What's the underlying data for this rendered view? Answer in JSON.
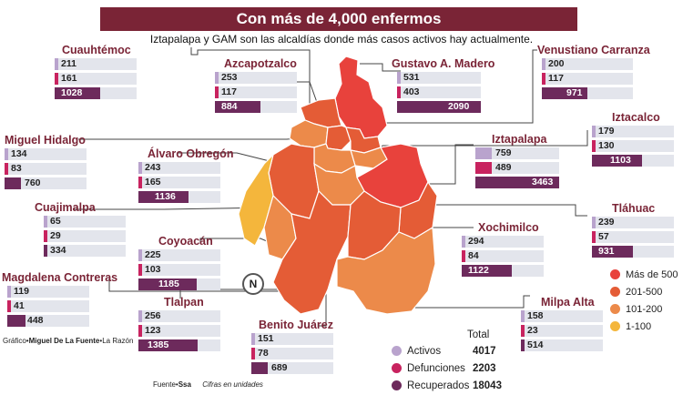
{
  "title": "Con más de 4,000 enfermos",
  "subtitle": "Iztapalapa y GAM son las alcaldías donde más casos activos hay actualmente.",
  "colors": {
    "banner": "#7a2436",
    "activos": "#b9a3cd",
    "defunciones": "#c8235f",
    "recuperados": "#6d2a5c",
    "mas500": "#e8423c",
    "r201_500": "#e45c36",
    "r101_200": "#ec8a4a",
    "r1_100": "#f4b63c"
  },
  "alcaldias": [
    {
      "name": "Cuauhtémoc",
      "activos": "211",
      "defunciones": "161",
      "recuperados": "1028"
    },
    {
      "name": "Azcapotzalco",
      "activos": "253",
      "defunciones": "117",
      "recuperados": "884"
    },
    {
      "name": "Gustavo A. Madero",
      "activos": "531",
      "defunciones": "403",
      "recuperados": "2090"
    },
    {
      "name": "Venustiano Carranza",
      "activos": "200",
      "defunciones": "117",
      "recuperados": "971"
    },
    {
      "name": "Miguel Hidalgo",
      "activos": "134",
      "defunciones": "83",
      "recuperados": "760"
    },
    {
      "name": "Álvaro Obregón",
      "activos": "243",
      "defunciones": "165",
      "recuperados": "1136"
    },
    {
      "name": "Iztacalco",
      "activos": "179",
      "defunciones": "130",
      "recuperados": "1103"
    },
    {
      "name": "Iztapalapa",
      "activos": "759",
      "defunciones": "489",
      "recuperados": "3463"
    },
    {
      "name": "Cuajimalpa",
      "activos": "65",
      "defunciones": "29",
      "recuperados": "334"
    },
    {
      "name": "Tláhuac",
      "activos": "239",
      "defunciones": "57",
      "recuperados": "931"
    },
    {
      "name": "Xochimilco",
      "activos": "294",
      "defunciones": "84",
      "recuperados": "1122"
    },
    {
      "name": "Coyoacán",
      "activos": "225",
      "defunciones": "103",
      "recuperados": "1185"
    },
    {
      "name": "Magdalena Contreras",
      "activos": "119",
      "defunciones": "41",
      "recuperados": "448"
    },
    {
      "name": "Tlalpan",
      "activos": "256",
      "defunciones": "123",
      "recuperados": "1385"
    },
    {
      "name": "Milpa Alta",
      "activos": "158",
      "defunciones": "23",
      "recuperados": "514"
    },
    {
      "name": "Benito Juárez",
      "activos": "151",
      "defunciones": "78",
      "recuperados": "689"
    }
  ],
  "scale": [
    "Más de 500",
    "201-500",
    "101-200",
    "1-100"
  ],
  "totals": {
    "header": "Total",
    "activos_label": "Activos",
    "activos": "4017",
    "defunciones_label": "Defunciones",
    "defunciones": "2203",
    "recuperados_label": "Recuperados",
    "recuperados": "18043"
  },
  "credit": {
    "grafico_prefix": "Gráfico•",
    "grafico_author": "Miguel De La Fuente",
    "grafico_suffix": "•La Razón",
    "fuente_prefix": "Fuente•",
    "fuente": "Ssa",
    "cifras": "Cifras en unidades"
  },
  "north": "N"
}
